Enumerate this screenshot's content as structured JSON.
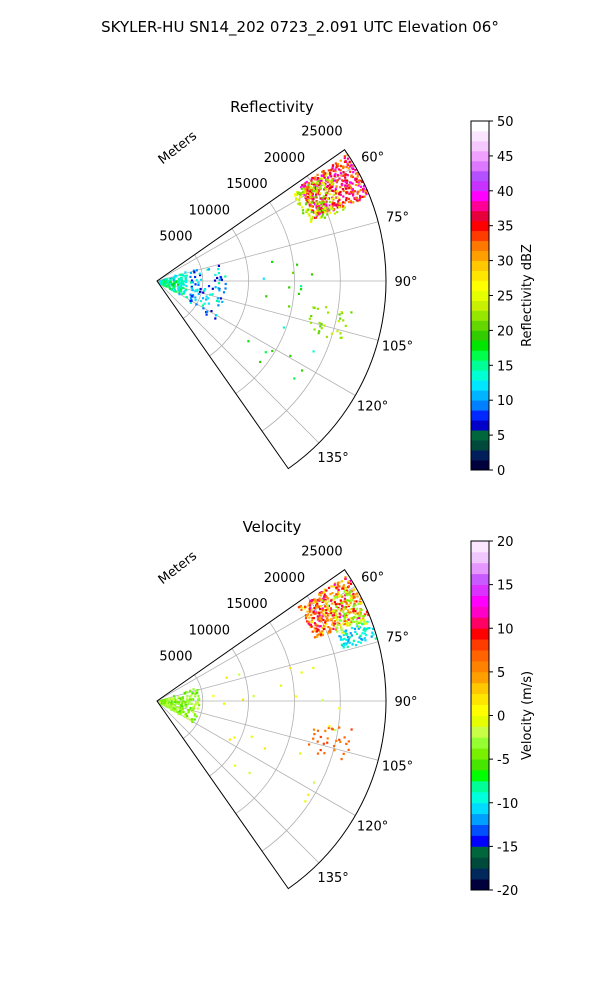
{
  "figure": {
    "title": "SKYLER-HU  SN14_202  0723_2.091 UTC Elevation 06°"
  },
  "chart_data": [
    {
      "type": "polar-sector",
      "title": "Reflectivity",
      "range_label": "Meters",
      "range_ticks": [
        5000,
        10000,
        15000,
        20000,
        25000
      ],
      "range_tick_labels": [
        "5000",
        "10000",
        "15000",
        "20000",
        "25000"
      ],
      "rmax": 25000,
      "angle_range_deg": [
        55,
        145
      ],
      "angle_ticks": [
        60,
        75,
        90,
        105,
        120,
        135
      ],
      "angle_tick_labels": [
        "60°",
        "75°",
        "90°",
        "105°",
        "120°",
        "135°"
      ],
      "grid": true,
      "colorbar": {
        "label": "Reflectivity dBZ",
        "min": 0,
        "max": 50,
        "ticks": [
          0,
          5,
          10,
          15,
          20,
          25,
          30,
          35,
          40,
          45,
          50
        ],
        "tick_labels": [
          "0",
          "5",
          "10",
          "15",
          "20",
          "25",
          "30",
          "35",
          "40",
          "45",
          "50"
        ],
        "colors": [
          "#00003c",
          "#001e5a",
          "#004a3c",
          "#00663c",
          "#0000c8",
          "#0028ff",
          "#0080ff",
          "#00b4ff",
          "#00e6ff",
          "#00ffd2",
          "#00ff96",
          "#00ff4b",
          "#00e600",
          "#32cd00",
          "#64d700",
          "#96e600",
          "#c8f000",
          "#e6ff00",
          "#ffff00",
          "#ffe600",
          "#ffc800",
          "#ffa000",
          "#ff7800",
          "#ff3c00",
          "#ff0000",
          "#e6003c",
          "#ff0096",
          "#ff00ff",
          "#c832ff",
          "#b450ff",
          "#dc78ff",
          "#f0a0ff",
          "#f5c8ff",
          "#fae6ff",
          "#ffffff"
        ]
      }
    },
    {
      "type": "polar-sector",
      "title": "Velocity",
      "range_label": "Meters",
      "range_ticks": [
        5000,
        10000,
        15000,
        20000,
        25000
      ],
      "range_tick_labels": [
        "5000",
        "10000",
        "15000",
        "20000",
        "25000"
      ],
      "rmax": 25000,
      "angle_range_deg": [
        55,
        145
      ],
      "angle_ticks": [
        60,
        75,
        90,
        105,
        120,
        135
      ],
      "angle_tick_labels": [
        "60°",
        "75°",
        "90°",
        "105°",
        "120°",
        "135°"
      ],
      "grid": true,
      "colorbar": {
        "label": "Velocity (m/s)",
        "min": -20,
        "max": 20,
        "ticks": [
          -20,
          -15,
          -10,
          -5,
          0,
          5,
          10,
          15,
          20
        ],
        "tick_labels": [
          "-20",
          "-15",
          "-10",
          "-5",
          "0",
          "5",
          "10",
          "15",
          "20"
        ],
        "colors": [
          "#00003c",
          "#00285a",
          "#004a3c",
          "#00663c",
          "#0000ff",
          "#0050ff",
          "#00a0ff",
          "#00dcff",
          "#00ffdc",
          "#00ff96",
          "#00ff00",
          "#46e600",
          "#78f000",
          "#96ff32",
          "#c8ff46",
          "#e6ff00",
          "#ffff00",
          "#ffe600",
          "#ffc800",
          "#ffa000",
          "#ff8200",
          "#ff6400",
          "#ff3c00",
          "#ff0000",
          "#ff0064",
          "#ff00c8",
          "#ff00ff",
          "#dc32ff",
          "#c85aff",
          "#e696ff",
          "#f0c8ff",
          "#fae6ff"
        ]
      }
    }
  ]
}
